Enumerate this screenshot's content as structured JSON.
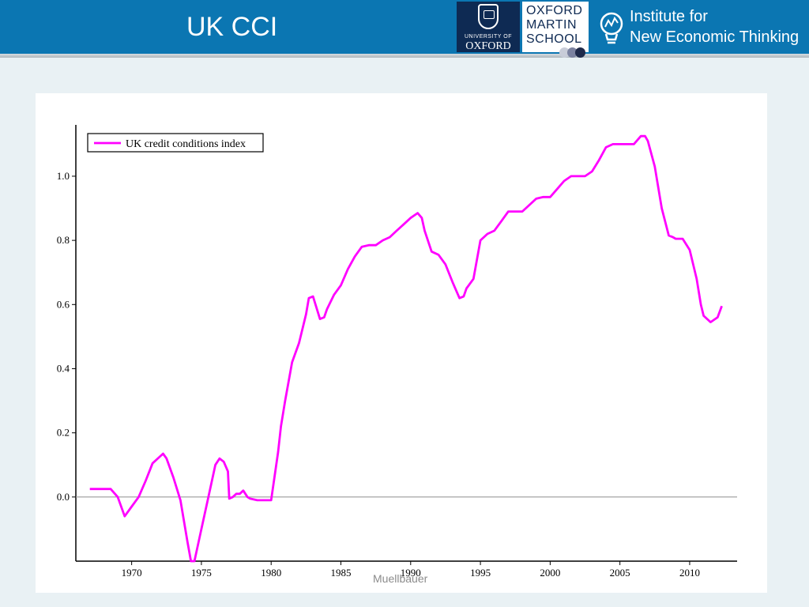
{
  "slide": {
    "title": "UK CCI",
    "footer": "Muellbauer"
  },
  "logos": {
    "oxford_university": {
      "line1": "UNIVERSITY OF",
      "line2": "OXFORD"
    },
    "oxford_martin": {
      "lines": [
        "OXFORD",
        "MARTIN",
        "SCHOOL"
      ]
    },
    "inet": {
      "line1": "Institute for",
      "line2": "New Economic Thinking"
    }
  },
  "colors": {
    "header": "#0b76b2",
    "oxford_navy": "#0e2a53",
    "series": "#ff00ff",
    "zero_line": "#9a9a9a"
  },
  "chart_data": {
    "type": "line",
    "title": "",
    "xlabel": "",
    "ylabel": "",
    "xlim": [
      1966.0,
      2013.4
    ],
    "ylim": [
      -0.2,
      1.16
    ],
    "xticks": [
      1970,
      1975,
      1980,
      1985,
      1990,
      1995,
      2000,
      2005,
      2010
    ],
    "yticks": [
      0.0,
      0.2,
      0.4,
      0.6,
      0.8,
      1.0
    ],
    "ytick_labels": [
      "0.0",
      "0.2",
      "0.4",
      "0.6",
      "0.8",
      "1.0"
    ],
    "legend_position": "top-left",
    "grid": false,
    "zero_line": true,
    "series": [
      {
        "name": "UK credit conditions index",
        "color": "#ff00ff",
        "x": [
          1967.0,
          1968.0,
          1968.5,
          1969.0,
          1969.5,
          1970.0,
          1970.5,
          1971.0,
          1971.5,
          1972.0,
          1972.25,
          1972.5,
          1973.0,
          1973.5,
          1974.0,
          1974.25,
          1974.5,
          1975.0,
          1975.5,
          1976.0,
          1976.3,
          1976.6,
          1976.9,
          1977.0,
          1977.25,
          1977.5,
          1977.75,
          1978.0,
          1978.3,
          1978.5,
          1979.0,
          1979.5,
          1980.0,
          1980.5,
          1980.7,
          1981.0,
          1981.5,
          1982.0,
          1982.5,
          1982.7,
          1983.0,
          1983.5,
          1983.8,
          1984.0,
          1984.5,
          1985.0,
          1985.5,
          1986.0,
          1986.5,
          1987.0,
          1987.5,
          1988.0,
          1988.5,
          1989.0,
          1989.5,
          1990.0,
          1990.5,
          1990.8,
          1991.0,
          1991.5,
          1992.0,
          1992.5,
          1993.0,
          1993.5,
          1993.8,
          1994.0,
          1994.5,
          1995.0,
          1995.5,
          1996.0,
          1996.5,
          1997.0,
          1997.5,
          1998.0,
          1998.5,
          1999.0,
          1999.5,
          2000.0,
          2000.5,
          2001.0,
          2001.5,
          2002.0,
          2002.5,
          2003.0,
          2003.5,
          2004.0,
          2004.5,
          2005.0,
          2005.5,
          2006.0,
          2006.5,
          2006.8,
          2007.0,
          2007.5,
          2008.0,
          2008.5,
          2008.8,
          2009.0,
          2009.5,
          2010.0,
          2010.5,
          2010.8,
          2011.0,
          2011.5,
          2012.0,
          2012.3
        ],
        "y": [
          0.025,
          0.025,
          0.025,
          0.0,
          -0.06,
          -0.03,
          0.0,
          0.05,
          0.105,
          0.125,
          0.135,
          0.12,
          0.06,
          -0.01,
          -0.14,
          -0.2,
          -0.2,
          -0.1,
          0.0,
          0.1,
          0.12,
          0.11,
          0.08,
          -0.005,
          0.0,
          0.01,
          0.01,
          0.02,
          0.0,
          -0.005,
          -0.01,
          -0.01,
          -0.01,
          0.14,
          0.22,
          0.3,
          0.42,
          0.48,
          0.57,
          0.62,
          0.625,
          0.555,
          0.56,
          0.585,
          0.63,
          0.66,
          0.71,
          0.75,
          0.78,
          0.785,
          0.785,
          0.8,
          0.81,
          0.83,
          0.85,
          0.87,
          0.885,
          0.87,
          0.83,
          0.765,
          0.755,
          0.725,
          0.67,
          0.62,
          0.625,
          0.65,
          0.68,
          0.8,
          0.82,
          0.83,
          0.86,
          0.89,
          0.89,
          0.89,
          0.91,
          0.93,
          0.935,
          0.935,
          0.96,
          0.985,
          1.0,
          1.0,
          1.0,
          1.015,
          1.05,
          1.09,
          1.1,
          1.1,
          1.1,
          1.1,
          1.125,
          1.125,
          1.11,
          1.03,
          0.9,
          0.815,
          0.81,
          0.805,
          0.805,
          0.77,
          0.68,
          0.6,
          0.565,
          0.545,
          0.56,
          0.595
        ]
      }
    ]
  }
}
